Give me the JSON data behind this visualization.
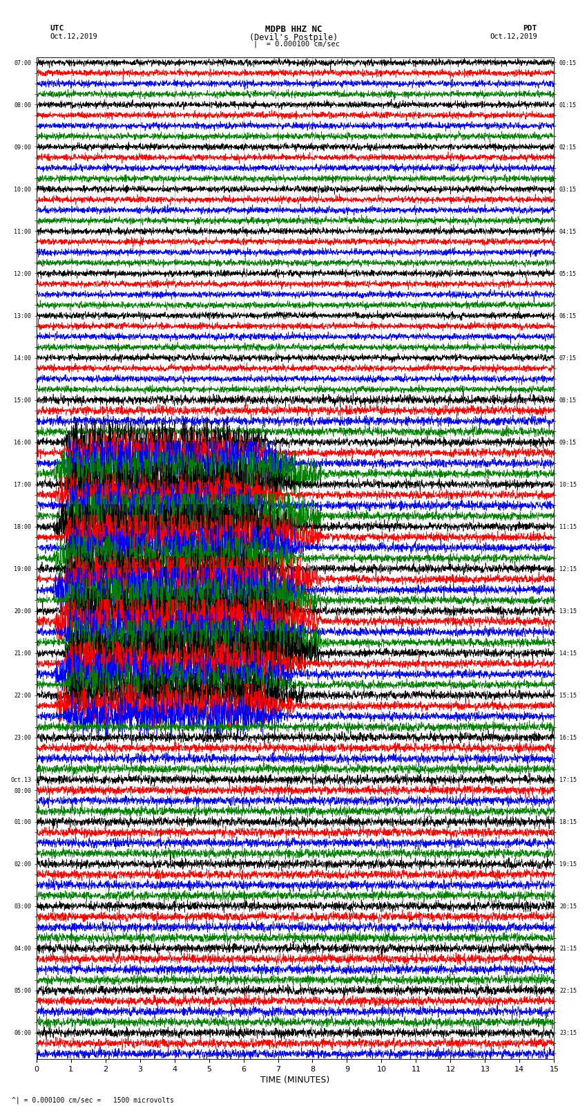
{
  "title_line1": "MDPB HHZ NC",
  "title_line2": "(Devil's Postpile)",
  "left_label": "UTC",
  "left_date": "Oct.12,2019",
  "right_label": "PDT",
  "right_date": "Oct.12,2019",
  "scale_text": "= 0.000100 cm/sec",
  "bottom_label": "TIME (MINUTES)",
  "bottom_note": "= 0.000100 cm/sec =   1500 microvolts",
  "xlabel_ticks": [
    0,
    1,
    2,
    3,
    4,
    5,
    6,
    7,
    8,
    9,
    10,
    11,
    12,
    13,
    14,
    15
  ],
  "utc_times": [
    "07:00",
    "",
    "",
    "",
    "08:00",
    "",
    "",
    "",
    "09:00",
    "",
    "",
    "",
    "10:00",
    "",
    "",
    "",
    "11:00",
    "",
    "",
    "",
    "12:00",
    "",
    "",
    "",
    "13:00",
    "",
    "",
    "",
    "14:00",
    "",
    "",
    "",
    "15:00",
    "",
    "",
    "",
    "16:00",
    "",
    "",
    "",
    "17:00",
    "",
    "",
    "",
    "18:00",
    "",
    "",
    "",
    "19:00",
    "",
    "",
    "",
    "20:00",
    "",
    "",
    "",
    "21:00",
    "",
    "",
    "",
    "22:00",
    "",
    "",
    "",
    "23:00",
    "",
    "",
    "",
    "Oct.13",
    "00:00",
    "",
    "",
    "01:00",
    "",
    "",
    "",
    "02:00",
    "",
    "",
    "",
    "03:00",
    "",
    "",
    "",
    "04:00",
    "",
    "",
    "",
    "05:00",
    "",
    "",
    "",
    "06:00",
    "",
    ""
  ],
  "pdt_times": [
    "00:15",
    "",
    "",
    "",
    "01:15",
    "",
    "",
    "",
    "02:15",
    "",
    "",
    "",
    "03:15",
    "",
    "",
    "",
    "04:15",
    "",
    "",
    "",
    "05:15",
    "",
    "",
    "",
    "06:15",
    "",
    "",
    "",
    "07:15",
    "",
    "",
    "",
    "08:15",
    "",
    "",
    "",
    "09:15",
    "",
    "",
    "",
    "10:15",
    "",
    "",
    "",
    "11:15",
    "",
    "",
    "",
    "12:15",
    "",
    "",
    "",
    "13:15",
    "",
    "",
    "",
    "14:15",
    "",
    "",
    "",
    "15:15",
    "",
    "",
    "",
    "16:15",
    "",
    "",
    "",
    "17:15",
    "",
    "",
    "",
    "18:15",
    "",
    "",
    "",
    "19:15",
    "",
    "",
    "",
    "20:15",
    "",
    "",
    "",
    "21:15",
    "",
    "",
    "",
    "22:15",
    "",
    "",
    "",
    "23:15",
    "",
    ""
  ],
  "colors": [
    "black",
    "red",
    "blue",
    "green"
  ],
  "n_rows": 95,
  "x_min": 0,
  "x_max": 15,
  "background_color": "white",
  "grid_color": "#aaaaaa",
  "grid_linewidth": 0.5,
  "trace_linewidth": 0.5,
  "amplitude_base": 0.35,
  "seismo_activity": {
    "quiet_rows": [
      0,
      1,
      2,
      3,
      4,
      5,
      6,
      7,
      8,
      9,
      10,
      11,
      12,
      13,
      14,
      15,
      16,
      17,
      18,
      19,
      20,
      21,
      22,
      23,
      24,
      25,
      26,
      27,
      28,
      29,
      30,
      31
    ],
    "mild_rows": [
      32,
      33,
      34,
      35,
      63,
      64,
      65,
      66,
      67,
      68,
      69,
      70,
      71,
      72,
      73,
      74,
      75,
      76,
      77,
      78,
      79,
      80,
      81,
      82,
      83,
      84,
      85,
      86,
      87,
      88,
      89,
      90,
      91,
      92,
      93,
      94
    ],
    "active_rows": [
      36,
      37,
      38,
      39,
      40,
      41,
      42,
      43,
      44,
      45,
      46,
      47,
      48,
      49,
      50,
      51,
      52,
      53,
      54,
      55,
      56,
      57,
      58,
      59,
      60,
      61,
      62
    ]
  }
}
